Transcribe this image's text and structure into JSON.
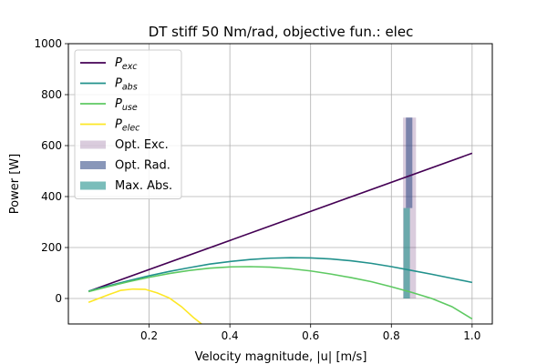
{
  "chart_data": {
    "type": "line",
    "title": "DT stiff 50 Nm/rad, objective fun.: elec",
    "xlabel": "Velocity magnitude, |u| [m/s]",
    "ylabel": "Power [W]",
    "xlim": [
      0.0,
      1.05
    ],
    "ylim": [
      -100,
      1000
    ],
    "xticks": [
      0.2,
      0.4,
      0.6,
      0.8,
      1.0
    ],
    "xtick_labels": [
      "0.2",
      "0.4",
      "0.6",
      "0.8",
      "1.0"
    ],
    "yticks": [
      0,
      200,
      400,
      600,
      800,
      1000
    ],
    "ytick_labels": [
      "0",
      "200",
      "400",
      "600",
      "800",
      "1000"
    ],
    "grid": true,
    "legend_position": "top-left",
    "series": [
      {
        "name": "P",
        "subscript": "exc",
        "color": "#440154",
        "x": [
          0.05,
          1.0
        ],
        "y": [
          28,
          570
        ]
      },
      {
        "name": "P",
        "subscript": "abs",
        "color": "#21918c",
        "x": [
          0.05,
          0.1,
          0.15,
          0.2,
          0.25,
          0.3,
          0.35,
          0.4,
          0.45,
          0.5,
          0.55,
          0.6,
          0.65,
          0.7,
          0.75,
          0.8,
          0.85,
          0.9,
          0.95,
          1.0
        ],
        "y": [
          29,
          50,
          70,
          89,
          106,
          121,
          135,
          145,
          153,
          158,
          160,
          159,
          155,
          148,
          138,
          125,
          110,
          95,
          79,
          63
        ]
      },
      {
        "name": "P",
        "subscript": "use",
        "color": "#5ec962",
        "x": [
          0.05,
          0.1,
          0.15,
          0.2,
          0.25,
          0.3,
          0.35,
          0.4,
          0.45,
          0.5,
          0.55,
          0.6,
          0.65,
          0.7,
          0.75,
          0.8,
          0.85,
          0.9,
          0.95,
          1.0
        ],
        "y": [
          27,
          47,
          66,
          83,
          98,
          110,
          119,
          124,
          125,
          123,
          117,
          108,
          96,
          82,
          66,
          46,
          24,
          0,
          -32,
          -80
        ]
      },
      {
        "name": "P",
        "subscript": "elec",
        "color": "#fde725",
        "x": [
          0.05,
          0.1,
          0.13,
          0.16,
          0.19,
          0.22,
          0.25,
          0.28,
          0.31,
          0.33
        ],
        "y": [
          -15,
          15,
          32,
          37,
          36,
          22,
          2,
          -32,
          -75,
          -100
        ]
      }
    ],
    "optimum_bars": [
      {
        "name": "Opt. Exc.",
        "color": "#440154",
        "opacity": 0.2,
        "x": 0.845,
        "width": 0.032,
        "ymin": 0,
        "ymax": 710
      },
      {
        "name": "Opt. Rad.",
        "color": "#3b528b",
        "opacity": 0.6,
        "x": 0.844,
        "width": 0.016,
        "ymin": 355,
        "ymax": 710
      },
      {
        "name": "Max. Abs.",
        "color": "#21918c",
        "opacity": 0.6,
        "x": 0.838,
        "width": 0.016,
        "ymin": 0,
        "ymax": 355
      }
    ]
  }
}
